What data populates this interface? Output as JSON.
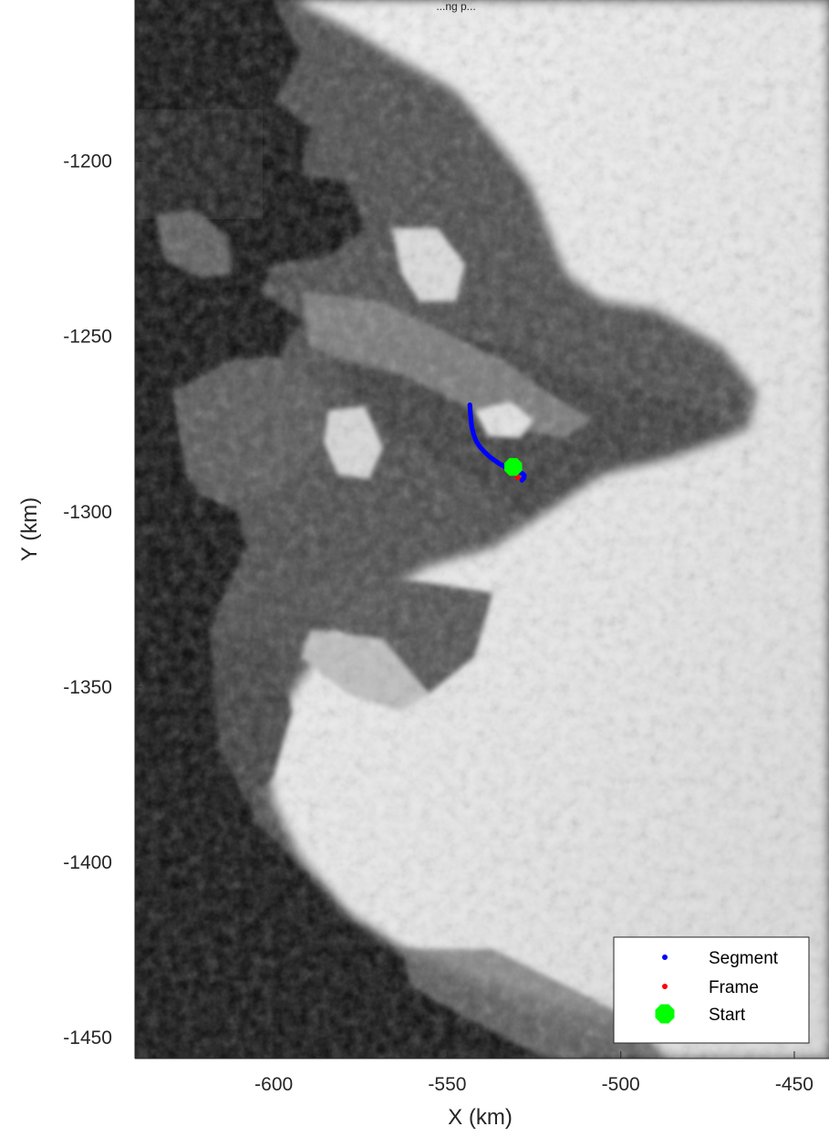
{
  "figure": {
    "title": "...ng p..."
  },
  "colors": {
    "segment": "#0000ff",
    "frame": "#ff0000",
    "start": "#00ff00",
    "ocean": "#0b0b0b",
    "ice": "#e8e8e8",
    "rock": "#4a4a4a"
  },
  "chart_data": {
    "type": "scatter",
    "background": "grayscale satellite mosaic (coastal Greenland, ice sheet to the east, ocean to the west)",
    "xlabel": "X (km)",
    "ylabel": "Y (km)",
    "xlim": [
      -640,
      -440
    ],
    "ylim": [
      -1456,
      -1154
    ],
    "xticks": [
      -600,
      -550,
      -500,
      -450
    ],
    "yticks": [
      -1200,
      -1250,
      -1300,
      -1350,
      -1400,
      -1450
    ],
    "xtick_labels": [
      "-600",
      "-550",
      "-500",
      "-450"
    ],
    "ytick_labels": [
      "-1200",
      "-1250",
      "-1300",
      "-1350",
      "-1400",
      "-1450"
    ],
    "legend": {
      "placement": "bottom-right",
      "entries": [
        {
          "label": "Segment",
          "marker": "dot",
          "color": "#0000ff"
        },
        {
          "label": "Frame",
          "marker": "dot",
          "color": "#ff0000"
        },
        {
          "label": "Start",
          "marker": "octagon",
          "color": "#00ff00"
        }
      ]
    },
    "series": [
      {
        "name": "Segment",
        "x": [
          -543.5,
          -543.3,
          -543.0,
          -542.4,
          -541.6,
          -540.5,
          -539.2,
          -537.8,
          -536.3,
          -534.8,
          -533.3,
          -531.8,
          -530.4,
          -529.2,
          -528.3,
          -527.8,
          -527.9,
          -528.5
        ],
        "y": [
          -1269.5,
          -1272.5,
          -1275.5,
          -1278.0,
          -1280.0,
          -1281.6,
          -1283.0,
          -1284.3,
          -1285.4,
          -1286.4,
          -1287.2,
          -1287.8,
          -1288.3,
          -1288.7,
          -1289.1,
          -1289.6,
          -1290.3,
          -1291.0
        ]
      },
      {
        "name": "Frame",
        "x": [
          -529.7
        ],
        "y": [
          -1290.2
        ]
      },
      {
        "name": "Start",
        "x": [
          -531.0
        ],
        "y": [
          -1287.2
        ]
      }
    ]
  }
}
